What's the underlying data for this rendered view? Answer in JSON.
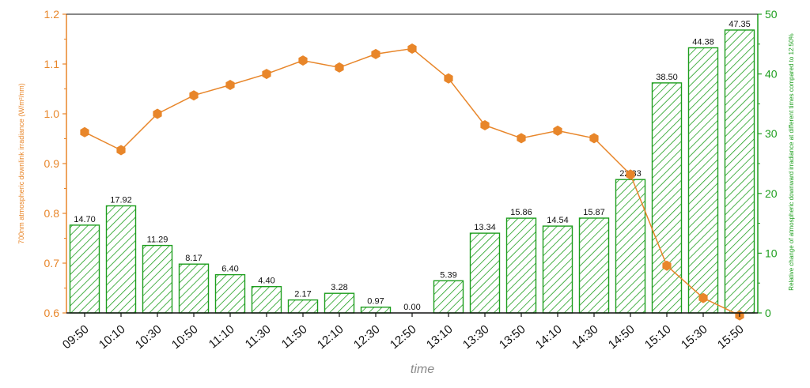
{
  "chart_data": {
    "type": "bar+line",
    "categories": [
      "09:50",
      "10:10",
      "10:30",
      "10:50",
      "11:10",
      "11:30",
      "11:50",
      "12:10",
      "12:30",
      "12:50",
      "13:10",
      "13:30",
      "13:50",
      "14:10",
      "14:30",
      "14:50",
      "15:10",
      "15:30",
      "15:50"
    ],
    "xlabel": "time",
    "ylabel_left": "700nm atmospheric downlink irradiance (W/m²/nm)",
    "ylabel_right": "Relative change of atmospheric downward irradiance at different times compared to 12:50%",
    "ylim_left": [
      0.6,
      1.2
    ],
    "yticks_left": [
      "0.6",
      "0.7",
      "0.8",
      "0.9",
      "1.0",
      "1.1",
      "1.2"
    ],
    "ylim_right": [
      0,
      50
    ],
    "yticks_right": [
      "0",
      "10",
      "20",
      "30",
      "40",
      "50"
    ],
    "line_series": {
      "axis": "left",
      "color": "#e8862a",
      "marker": "hexagon",
      "values": [
        0.963,
        0.927,
        1.0,
        1.037,
        1.058,
        1.08,
        1.107,
        1.093,
        1.12,
        1.131,
        1.071,
        0.977,
        0.951,
        0.966,
        0.951,
        0.878,
        0.695,
        0.63,
        0.595
      ]
    },
    "bar_series": {
      "axis": "right",
      "color": "#1e9e1e",
      "pattern": "diagonal-hatch",
      "values": [
        14.7,
        17.92,
        11.29,
        8.17,
        6.4,
        4.4,
        2.17,
        3.28,
        0.97,
        0.0,
        5.39,
        13.34,
        15.86,
        14.54,
        15.87,
        22.33,
        38.5,
        44.38,
        47.35
      ],
      "labels": [
        "14.70",
        "17.92",
        "11.29",
        "8.17",
        "6.40",
        "4.40",
        "2.17",
        "3.28",
        "0.97",
        "0.00",
        "5.39",
        "13.34",
        "15.86",
        "14.54",
        "15.87",
        "22.33",
        "38.50",
        "44.38",
        "47.35"
      ]
    },
    "grid": false
  }
}
